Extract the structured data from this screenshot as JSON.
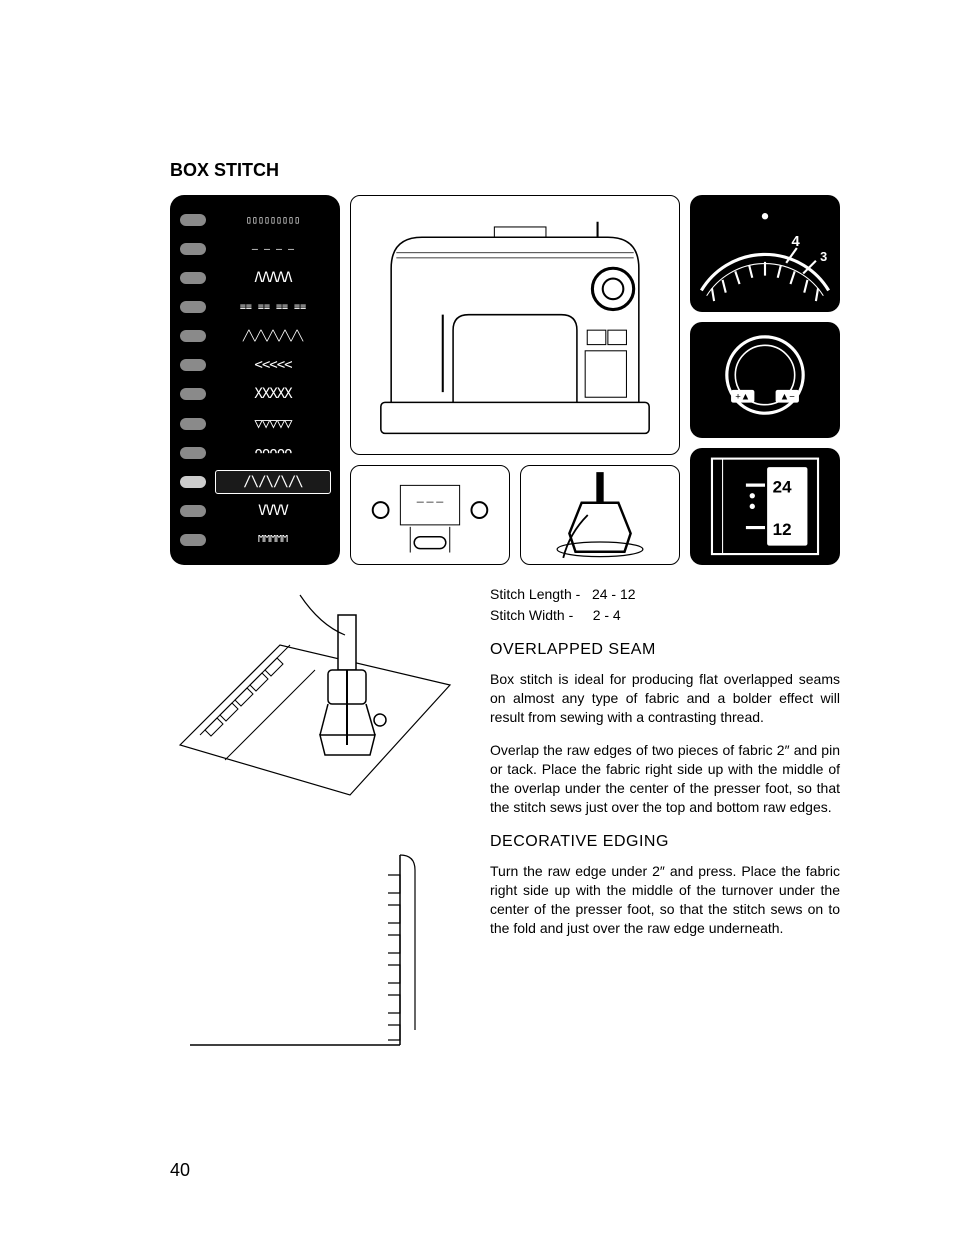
{
  "title": "BOX STITCH",
  "page_number": "40",
  "stitch_panel": {
    "bg": "#000000",
    "btn_color": "#8a8a8a",
    "selected_index": 9,
    "rows": [
      {
        "glyph": "▯▯▯▯▯▯▯▯▯",
        "cls": "small"
      },
      {
        "glyph": "— — — —",
        "cls": "small"
      },
      {
        "glyph": "ΛΛΛΛΛ",
        "cls": ""
      },
      {
        "glyph": "≡≡ ≡≡ ≡≡ ≡≡",
        "cls": "small"
      },
      {
        "glyph": "╱╲╱╲╱╲╱╲╱╲",
        "cls": "small"
      },
      {
        "glyph": "<<<<<",
        "cls": ""
      },
      {
        "glyph": "XXXXX",
        "cls": ""
      },
      {
        "glyph": "▽▽▽▽▽",
        "cls": ""
      },
      {
        "glyph": "ᴖᴖᴖᴖᴖ",
        "cls": ""
      },
      {
        "glyph": "/\\/\\/\\/\\",
        "cls": ""
      },
      {
        "glyph": "VVVV",
        "cls": ""
      },
      {
        "glyph": "ϺϺϺϺϺ",
        "cls": "small"
      }
    ]
  },
  "stitch_length_dial": {
    "marks": [
      "24",
      "12"
    ]
  },
  "width_dial": {
    "top_mark": "4",
    "right_mark": "3"
  },
  "specs": {
    "stitch_length_label": "Stitch Length -",
    "stitch_length_value": "24 - 12",
    "stitch_width_label": "Stitch Width -",
    "stitch_width_value": "2 - 4"
  },
  "sections": [
    {
      "heading": "OVERLAPPED SEAM",
      "paragraphs": [
        "Box stitch is ideal for producing flat overlapped seams on almost any type of fabric and a bolder effect will result from sewing with a contrasting thread.",
        "Overlap the raw edges of two pieces of fabric 2″ and pin or tack. Place the fabric right side up with the middle of the overlap under the center of the presser foot, so that the stitch sews just over the top and bottom raw edges."
      ]
    },
    {
      "heading": "DECORATIVE EDGING",
      "paragraphs": [
        "Turn the raw edge under 2″ and press. Place the fabric right side up with the middle of the turnover under the center of the presser foot, so that the stitch sews on to the fold and just over the raw edge underneath."
      ]
    }
  ]
}
